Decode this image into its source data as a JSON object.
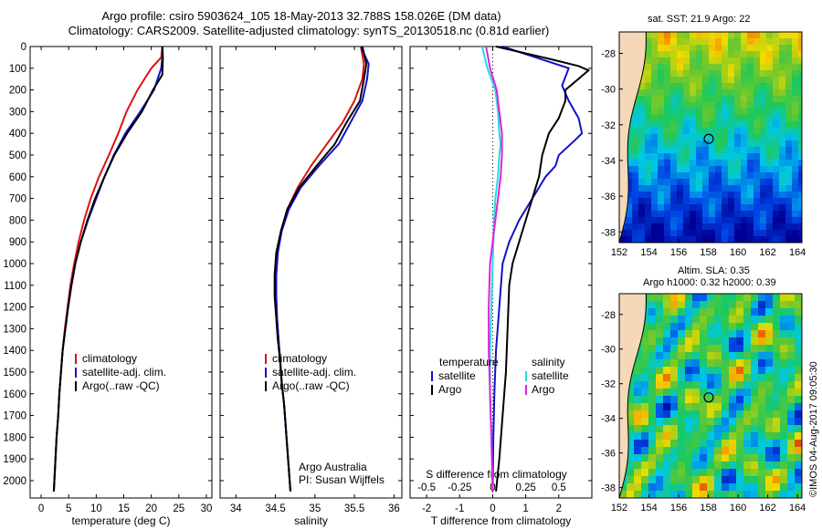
{
  "header": {
    "line1": "Argo profile: csiro 5903624_105 18-May-2013 32.788S 158.026E (DM data)",
    "line2": "Climatology: CARS2009. Satellite-adjusted climatology: synTS_20130518.nc (0.81d earlier)"
  },
  "stamp": "©IMOS 04-Aug-2017 09:05:30",
  "maps": {
    "sst_title": "sat. SST: 21.9 Argo: 22",
    "sla_title1": "Altim. SLA: 0.35",
    "sla_title2": "Argo h1000: 0.32 h2000: 0.39",
    "lat_ticks": [
      "-28",
      "-30",
      "-32",
      "-34",
      "-36",
      "-38"
    ],
    "lon_ticks": [
      "152",
      "154",
      "156",
      "158",
      "160",
      "162",
      "164"
    ],
    "argo_lon": 158.026,
    "argo_lat": -32.788
  },
  "colors": {
    "climatology": "#dd1111",
    "satellite": "#1111cc",
    "argo": "#000000",
    "salinity_satellite": "#22dddd",
    "salinity_argo": "#dd22dd"
  },
  "chart_data": [
    {
      "type": "line",
      "panel": "temperature",
      "xlabel": "temperature (deg C)",
      "ylabel": "",
      "xlim": [
        -2,
        31
      ],
      "ylim": [
        2080,
        0
      ],
      "xticks": [
        0,
        5,
        10,
        15,
        20,
        25,
        30
      ],
      "yticks": [
        0,
        100,
        200,
        300,
        400,
        500,
        600,
        700,
        800,
        900,
        1000,
        1100,
        1200,
        1300,
        1400,
        1500,
        1600,
        1700,
        1800,
        1900,
        2000
      ],
      "legend": [
        "climatology",
        "satellite-adj. clim.",
        "Argo(..raw -QC)"
      ],
      "series": [
        {
          "name": "climatology",
          "color": "#dd1111",
          "points": [
            [
              22,
              0
            ],
            [
              21.8,
              50
            ],
            [
              20,
              100
            ],
            [
              17.5,
              200
            ],
            [
              15.5,
              300
            ],
            [
              14,
              400
            ],
            [
              12.3,
              500
            ],
            [
              10.5,
              600
            ],
            [
              9,
              700
            ],
            [
              7.8,
              800
            ],
            [
              6.8,
              900
            ],
            [
              6,
              1000
            ],
            [
              5.3,
              1100
            ],
            [
              4.8,
              1200
            ],
            [
              4.3,
              1300
            ],
            [
              3.9,
              1400
            ],
            [
              3.6,
              1500
            ],
            [
              3.3,
              1600
            ],
            [
              3.1,
              1700
            ],
            [
              2.8,
              1800
            ],
            [
              2.6,
              1900
            ],
            [
              2.4,
              2000
            ],
            [
              2.3,
              2050
            ]
          ]
        },
        {
          "name": "satellite-adj. clim.",
          "color": "#1111cc",
          "points": [
            [
              22,
              0
            ],
            [
              22,
              50
            ],
            [
              21.8,
              100
            ],
            [
              20.5,
              200
            ],
            [
              18,
              300
            ],
            [
              15.3,
              400
            ],
            [
              13.2,
              500
            ],
            [
              11.5,
              600
            ],
            [
              10,
              700
            ],
            [
              8.5,
              800
            ],
            [
              7.2,
              900
            ],
            [
              6.2,
              1000
            ],
            [
              5.5,
              1100
            ],
            [
              4.9,
              1200
            ],
            [
              4.4,
              1300
            ],
            [
              3.9,
              1400
            ],
            [
              3.6,
              1500
            ],
            [
              3.3,
              1600
            ],
            [
              3.1,
              1700
            ],
            [
              2.8,
              1800
            ],
            [
              2.6,
              1900
            ],
            [
              2.4,
              2000
            ],
            [
              2.3,
              2050
            ]
          ]
        },
        {
          "name": "Argo(..raw -QC)",
          "color": "#000000",
          "points": [
            [
              22,
              0
            ],
            [
              22.1,
              50
            ],
            [
              22,
              130
            ],
            [
              20.3,
              200
            ],
            [
              18.3,
              300
            ],
            [
              15.6,
              400
            ],
            [
              13.3,
              500
            ],
            [
              11.5,
              600
            ],
            [
              9.8,
              700
            ],
            [
              8.4,
              800
            ],
            [
              7.2,
              900
            ],
            [
              6.2,
              1000
            ],
            [
              5.5,
              1100
            ],
            [
              4.9,
              1200
            ],
            [
              4.4,
              1300
            ],
            [
              3.9,
              1400
            ],
            [
              3.6,
              1500
            ],
            [
              3.3,
              1600
            ],
            [
              3.1,
              1700
            ],
            [
              2.8,
              1800
            ],
            [
              2.6,
              1900
            ],
            [
              2.4,
              2000
            ],
            [
              2.3,
              2050
            ]
          ]
        }
      ]
    },
    {
      "type": "line",
      "panel": "salinity",
      "xlabel": "salinity",
      "ylabel": "",
      "xlim": [
        33.8,
        36.1
      ],
      "ylim": [
        2080,
        0
      ],
      "xticks": [
        34,
        34.5,
        35,
        35.5,
        36
      ],
      "yticks": [
        0,
        100,
        200,
        300,
        400,
        500,
        600,
        700,
        800,
        900,
        1000,
        1100,
        1200,
        1300,
        1400,
        1500,
        1600,
        1700,
        1800,
        1900,
        2000
      ],
      "legend": [
        "climatology",
        "satellite-adj. clim.",
        "Argo(..raw -QC)"
      ],
      "annotation": [
        "Argo Australia",
        "PI: Susan Wijffels"
      ],
      "series": [
        {
          "name": "climatology",
          "color": "#dd1111",
          "points": [
            [
              35.58,
              0
            ],
            [
              35.62,
              80
            ],
            [
              35.6,
              150
            ],
            [
              35.5,
              250
            ],
            [
              35.35,
              350
            ],
            [
              35.15,
              450
            ],
            [
              34.95,
              550
            ],
            [
              34.78,
              650
            ],
            [
              34.65,
              750
            ],
            [
              34.57,
              850
            ],
            [
              34.53,
              950
            ],
            [
              34.51,
              1050
            ],
            [
              34.51,
              1150
            ],
            [
              34.52,
              1250
            ],
            [
              34.54,
              1350
            ],
            [
              34.56,
              1450
            ],
            [
              34.58,
              1550
            ],
            [
              34.61,
              1650
            ],
            [
              34.63,
              1750
            ],
            [
              34.65,
              1850
            ],
            [
              34.67,
              1950
            ],
            [
              34.69,
              2050
            ]
          ]
        },
        {
          "name": "satellite-adj. clim.",
          "color": "#1111cc",
          "points": [
            [
              35.58,
              0
            ],
            [
              35.68,
              80
            ],
            [
              35.66,
              150
            ],
            [
              35.6,
              250
            ],
            [
              35.45,
              350
            ],
            [
              35.3,
              450
            ],
            [
              35.05,
              550
            ],
            [
              34.82,
              650
            ],
            [
              34.67,
              750
            ],
            [
              34.58,
              850
            ],
            [
              34.53,
              950
            ],
            [
              34.51,
              1050
            ],
            [
              34.51,
              1150
            ],
            [
              34.52,
              1250
            ],
            [
              34.54,
              1350
            ],
            [
              34.56,
              1450
            ],
            [
              34.58,
              1550
            ],
            [
              34.61,
              1650
            ],
            [
              34.63,
              1750
            ],
            [
              34.65,
              1850
            ],
            [
              34.67,
              1950
            ],
            [
              34.69,
              2050
            ]
          ]
        },
        {
          "name": "Argo(..raw -QC)",
          "color": "#000000",
          "points": [
            [
              35.6,
              0
            ],
            [
              35.65,
              80
            ],
            [
              35.62,
              150
            ],
            [
              35.57,
              250
            ],
            [
              35.4,
              350
            ],
            [
              35.25,
              450
            ],
            [
              35.02,
              550
            ],
            [
              34.8,
              650
            ],
            [
              34.65,
              750
            ],
            [
              34.57,
              850
            ],
            [
              34.51,
              950
            ],
            [
              34.49,
              1050
            ],
            [
              34.49,
              1150
            ],
            [
              34.51,
              1250
            ],
            [
              34.53,
              1350
            ],
            [
              34.56,
              1450
            ],
            [
              34.58,
              1550
            ],
            [
              34.61,
              1650
            ],
            [
              34.63,
              1750
            ],
            [
              34.65,
              1850
            ],
            [
              34.67,
              1950
            ],
            [
              34.69,
              2050
            ]
          ]
        }
      ]
    },
    {
      "type": "line",
      "panel": "difference",
      "xlabel": "T difference from climatology",
      "ylabel": "",
      "top_axis_label": "S difference from climatology",
      "xlim": [
        -2.5,
        3
      ],
      "ylim": [
        2080,
        0
      ],
      "xticks": [
        -2,
        -1,
        0,
        1,
        2
      ],
      "xticklabels": [
        "-2",
        "-1",
        "0",
        "1",
        "2"
      ],
      "sticks": [
        -0.5,
        -0.25,
        0,
        0.25,
        0.5
      ],
      "sticklabels": [
        "-0.5",
        "-0.25",
        "0",
        "0.25",
        "0.5"
      ],
      "s_scale": 4,
      "yticks": [
        0,
        100,
        200,
        300,
        400,
        500,
        600,
        700,
        800,
        900,
        1000,
        1100,
        1200,
        1300,
        1400,
        1500,
        1600,
        1700,
        1800,
        1900,
        2000
      ],
      "legend": {
        "temperature": [
          "satellite",
          "Argo"
        ],
        "salinity": [
          "satellite",
          "Argo"
        ],
        "temperature_title": "temperature",
        "salinity_title": "salinity"
      },
      "series": [
        {
          "name": "T satellite",
          "color": "#1111cc",
          "points": [
            [
              0.3,
              0
            ],
            [
              1.5,
              60
            ],
            [
              2.3,
              100
            ],
            [
              2.1,
              180
            ],
            [
              2.3,
              250
            ],
            [
              2.6,
              330
            ],
            [
              2.7,
              400
            ],
            [
              2.5,
              430
            ],
            [
              2,
              500
            ],
            [
              1.9,
              550
            ],
            [
              1.6,
              600
            ],
            [
              1.2,
              700
            ],
            [
              0.8,
              800
            ],
            [
              0.5,
              900
            ],
            [
              0.3,
              1000
            ],
            [
              0.2,
              1200
            ],
            [
              0.1,
              1400
            ],
            [
              0.05,
              1600
            ],
            [
              0.02,
              1800
            ],
            [
              0,
              2050
            ]
          ]
        },
        {
          "name": "T Argo",
          "color": "#000000",
          "points": [
            [
              0.1,
              0
            ],
            [
              1.8,
              60
            ],
            [
              2.6,
              90
            ],
            [
              2.9,
              110
            ],
            [
              2.2,
              200
            ],
            [
              2.2,
              250
            ],
            [
              2,
              330
            ],
            [
              1.7,
              400
            ],
            [
              1.6,
              450
            ],
            [
              1.5,
              500
            ],
            [
              1.4,
              600
            ],
            [
              1.2,
              700
            ],
            [
              1,
              800
            ],
            [
              0.8,
              900
            ],
            [
              0.6,
              1000
            ],
            [
              0.5,
              1100
            ],
            [
              0.45,
              1300
            ],
            [
              0.4,
              1500
            ],
            [
              0.3,
              1700
            ],
            [
              0.2,
              1900
            ],
            [
              0.1,
              2050
            ]
          ]
        },
        {
          "name": "S satellite",
          "color": "#22dddd",
          "points": [
            [
              -0.08,
              0
            ],
            [
              -0.04,
              100
            ],
            [
              0.02,
              200
            ],
            [
              0.04,
              300
            ],
            [
              0.05,
              400
            ],
            [
              0.06,
              450
            ],
            [
              0.05,
              500
            ],
            [
              0.04,
              600
            ],
            [
              0.02,
              700
            ],
            [
              0.01,
              800
            ],
            [
              0,
              1000
            ],
            [
              -0.01,
              1200
            ],
            [
              -0.02,
              1400
            ],
            [
              -0.02,
              1600
            ],
            [
              -0.01,
              1800
            ],
            [
              0,
              2050
            ]
          ]
        },
        {
          "name": "S Argo",
          "color": "#dd22dd",
          "points": [
            [
              -0.05,
              0
            ],
            [
              -0.02,
              100
            ],
            [
              0.03,
              200
            ],
            [
              0.05,
              300
            ],
            [
              0.07,
              400
            ],
            [
              0.07,
              500
            ],
            [
              0.06,
              600
            ],
            [
              0.04,
              700
            ],
            [
              0.02,
              800
            ],
            [
              0,
              900
            ],
            [
              -0.02,
              1000
            ],
            [
              -0.03,
              1200
            ],
            [
              -0.03,
              1400
            ],
            [
              -0.02,
              1600
            ],
            [
              -0.01,
              1800
            ],
            [
              0,
              2050
            ]
          ]
        }
      ]
    }
  ]
}
